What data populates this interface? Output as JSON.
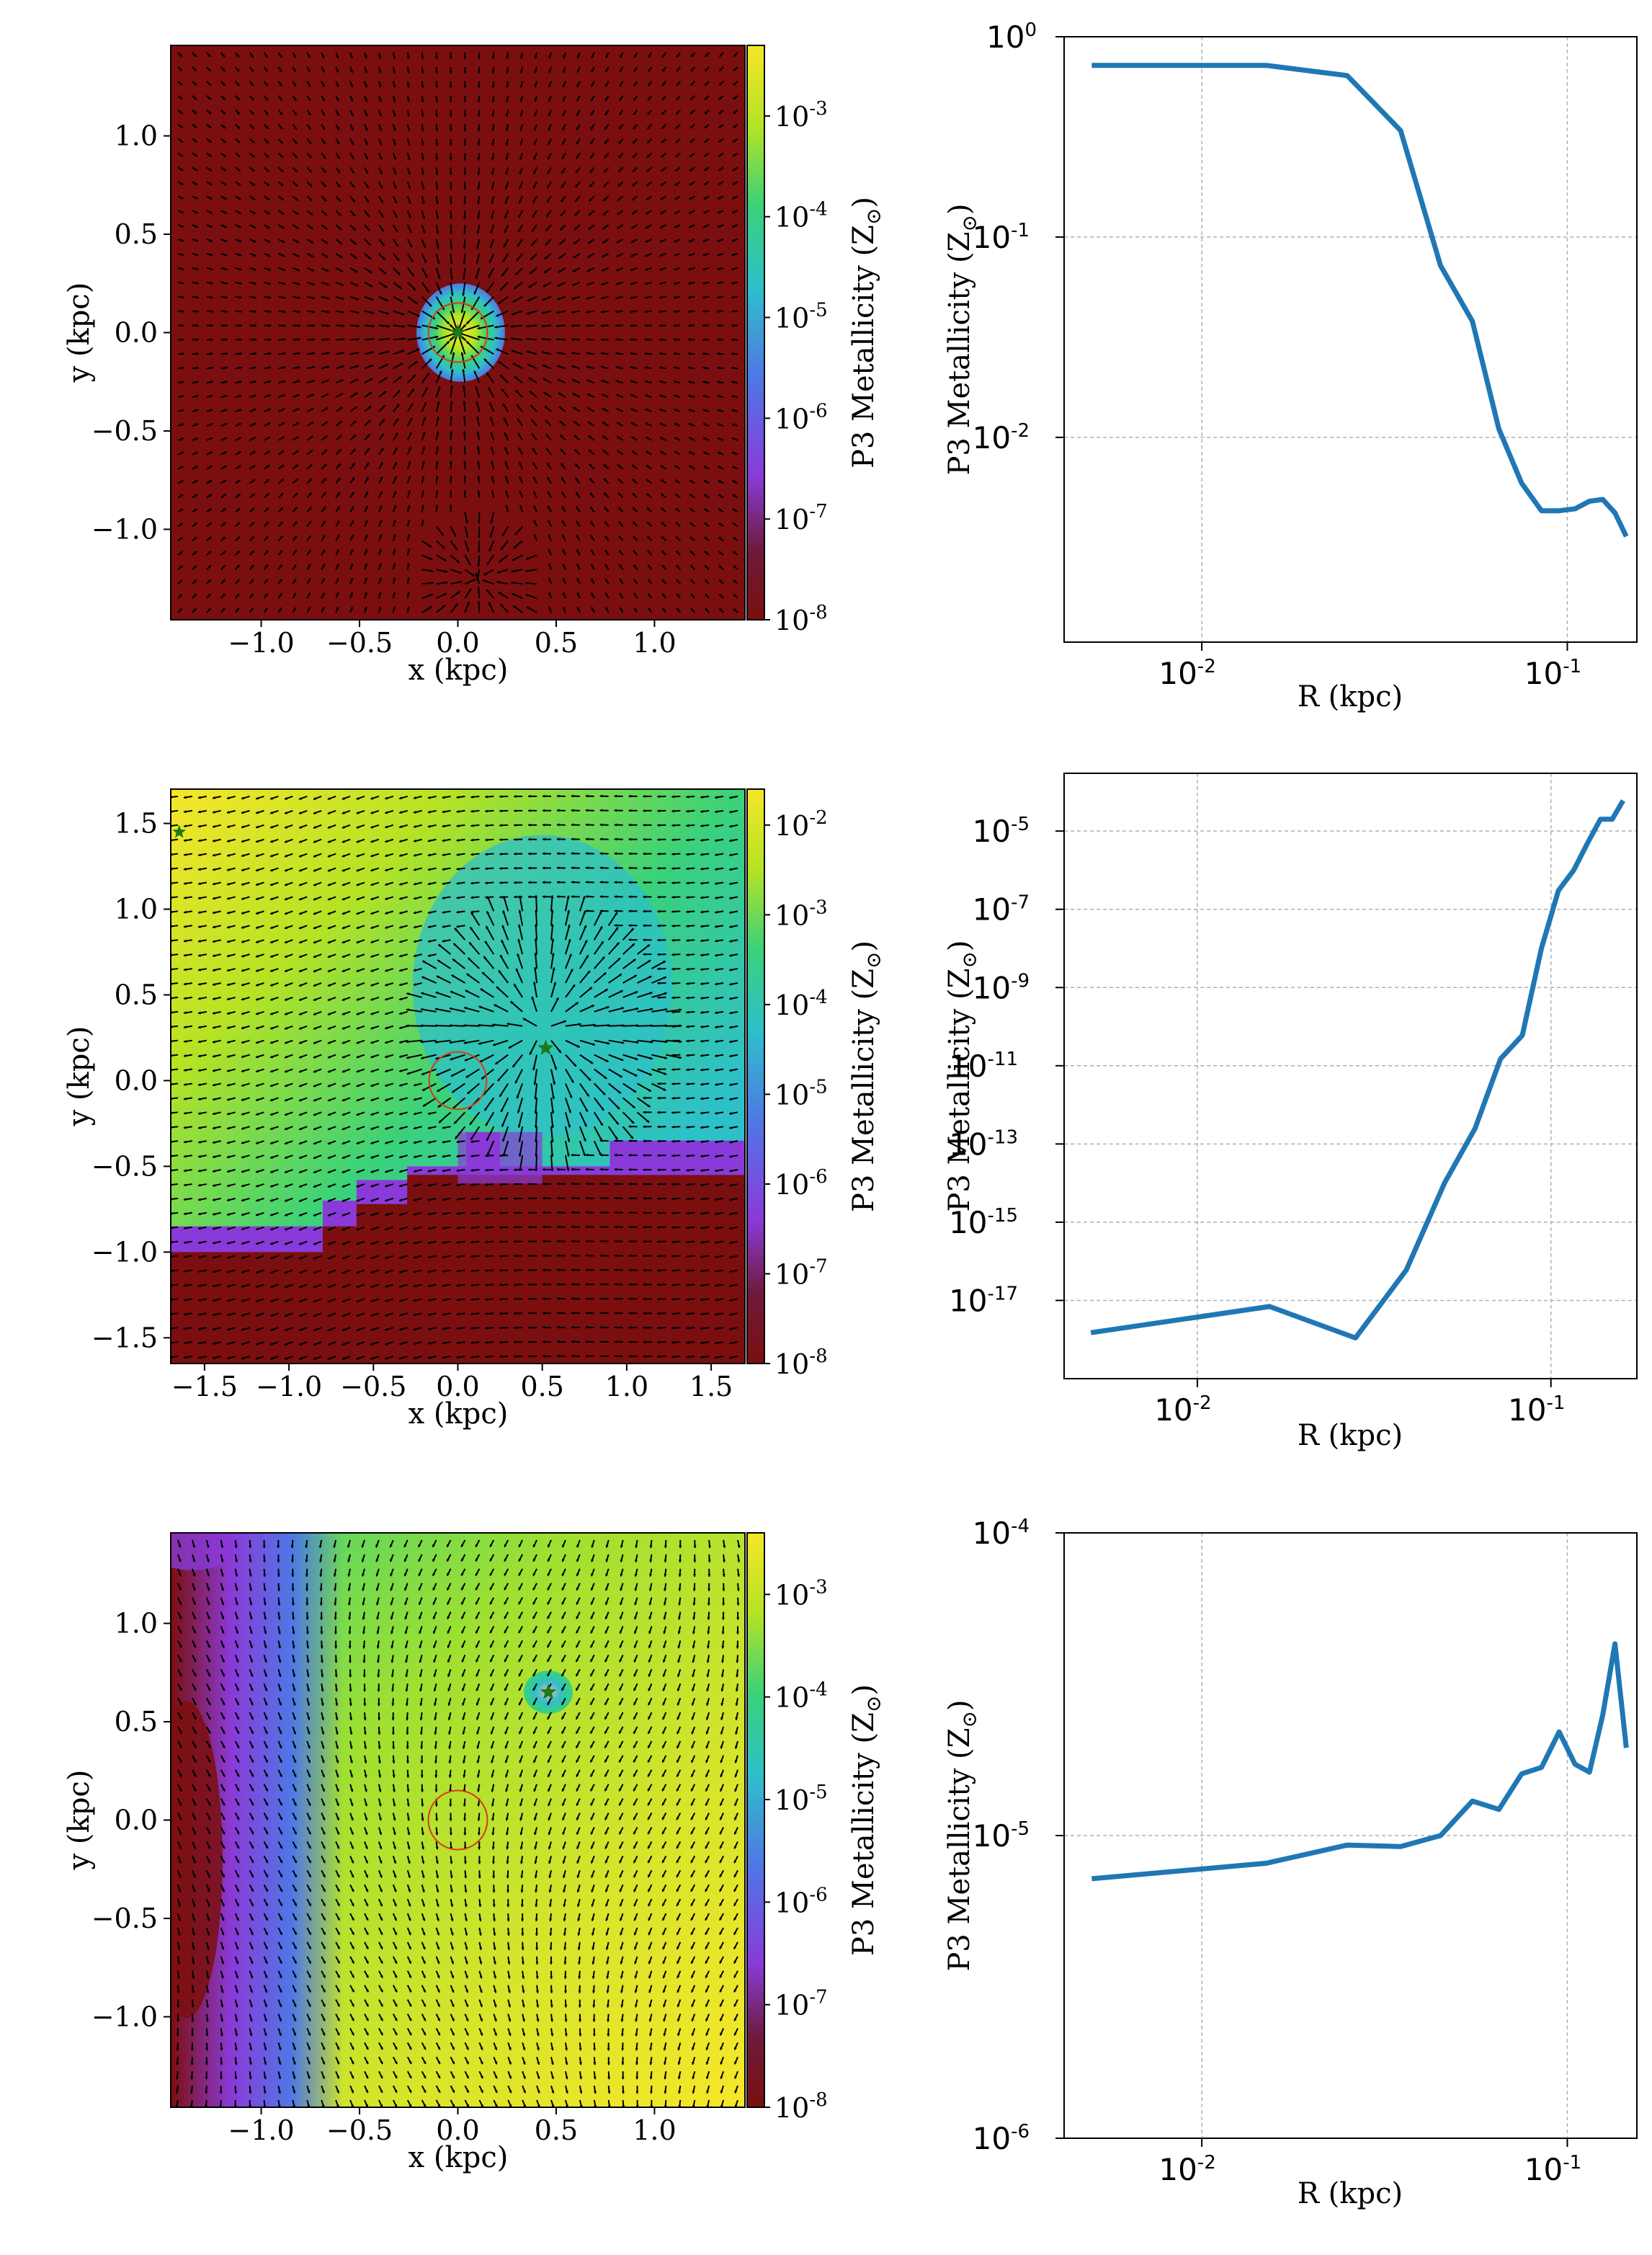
{
  "colors": {
    "colormap": [
      "#7b0f0f",
      "#8a3ad8",
      "#4f77e6",
      "#2ec0c9",
      "#3ad17a",
      "#b5e324",
      "#f7e629"
    ],
    "profile_line": "#1f77b4",
    "grid": "#b0b0b0",
    "arrow": "#000000",
    "star": "#1a7a1a",
    "circle": "#d63a1a"
  },
  "common": {
    "map_xlabel": "x  (kpc)",
    "map_ylabel": "y  (kpc)",
    "colorbar_label": "P3 Metallicity  (Z",
    "colorbar_label_sub": "⊙",
    "colorbar_label_close": ")",
    "profile_xlabel": "R  (kpc)",
    "profile_ylabel": "P3 Metallicity  (Z",
    "profile_ylabel_sub": "⊙",
    "profile_ylabel_close": ")"
  },
  "chart_data": [
    {
      "type": "heatmap",
      "panel": "top-left",
      "xlim": [
        -1.46,
        1.46
      ],
      "ylim": [
        -1.46,
        1.46
      ],
      "xticks": [
        "−1.0",
        "−0.5",
        "0.0",
        "0.5",
        "1.0"
      ],
      "xtick_values": [
        -1.0,
        -0.5,
        0.0,
        0.5,
        1.0
      ],
      "yticks": [
        "1.0",
        "0.5",
        "0.0",
        "−0.5",
        "−1.0"
      ],
      "ytick_values": [
        1.0,
        0.5,
        0.0,
        -0.5,
        -1.0
      ],
      "colorbar": {
        "log_min": -8,
        "log_max": -2.3,
        "tick_exponents": [
          -3,
          -4,
          -5,
          -6,
          -7,
          -8
        ]
      },
      "background_log_metallicity": -8,
      "enriched_regions": [
        {
          "x": 0.0,
          "y": 0.0,
          "radius": 0.25,
          "peak_log": -2.6
        }
      ],
      "star": {
        "x": 0.0,
        "y": 0.0
      },
      "circle": {
        "x": 0.0,
        "y": 0.0,
        "r": 0.15
      },
      "outflow": {
        "x": 0.0,
        "y": 0.0
      },
      "inflow": {
        "x": 0.1,
        "y": -1.25
      }
    },
    {
      "type": "line",
      "panel": "top-right",
      "xscale": "log",
      "yscale": "log",
      "xlim": [
        0.0042,
        0.155
      ],
      "ylim": [
        0.00095,
        1.0
      ],
      "grid": true,
      "xticks": [
        {
          "label": "10",
          "exp": "-2",
          "value": 0.01
        },
        {
          "label": "10",
          "exp": "-1",
          "value": 0.1
        }
      ],
      "yticks": [
        {
          "label": "10",
          "exp": "0",
          "value": 1
        },
        {
          "label": "10",
          "exp": "-1",
          "value": 0.1
        },
        {
          "label": "10",
          "exp": "-2",
          "value": 0.01
        }
      ],
      "x": [
        0.005,
        0.015,
        0.025,
        0.035,
        0.045,
        0.055,
        0.065,
        0.075,
        0.085,
        0.095,
        0.105,
        0.115,
        0.125,
        0.135,
        0.145
      ],
      "y": [
        0.72,
        0.72,
        0.64,
        0.34,
        0.072,
        0.038,
        0.011,
        0.0059,
        0.0043,
        0.0043,
        0.0044,
        0.0048,
        0.0049,
        0.0042,
        0.0032
      ]
    },
    {
      "type": "heatmap",
      "panel": "middle-left",
      "xlim": [
        -1.7,
        1.7
      ],
      "ylim": [
        -1.65,
        1.7
      ],
      "xticks": [
        "−1.5",
        "−1.0",
        "−0.5",
        "0.0",
        "0.5",
        "1.0",
        "1.5"
      ],
      "xtick_values": [
        -1.5,
        -1.0,
        -0.5,
        0.0,
        0.5,
        1.0,
        1.5
      ],
      "yticks": [
        "1.5",
        "1.0",
        "0.5",
        "0.0",
        "−0.5",
        "−1.0",
        "−1.5"
      ],
      "ytick_values": [
        1.5,
        1.0,
        0.5,
        0.0,
        -0.5,
        -1.0,
        -1.5
      ],
      "colorbar": {
        "log_min": -8,
        "log_max": -1.6,
        "tick_exponents": [
          -2,
          -3,
          -4,
          -5,
          -6,
          -7,
          -8
        ]
      },
      "star": {
        "x": 0.52,
        "y": 0.19
      },
      "star2": {
        "x": -1.65,
        "y": 1.45
      },
      "circle": {
        "x": 0.0,
        "y": 0.0,
        "r": 0.17
      },
      "outflow": {
        "x": 0.5,
        "y": 0.3
      }
    },
    {
      "type": "line",
      "panel": "middle-right",
      "xscale": "log",
      "yscale": "log",
      "xlim": [
        0.0042,
        0.175
      ],
      "ylim": [
        1e-19,
        0.0003
      ],
      "grid": true,
      "xticks": [
        {
          "label": "10",
          "exp": "-2",
          "value": 0.01
        },
        {
          "label": "10",
          "exp": "-1",
          "value": 0.1
        }
      ],
      "yticks": [
        {
          "label": "10",
          "exp": "-5",
          "value": 1e-05
        },
        {
          "label": "10",
          "exp": "-7",
          "value": 1e-07
        },
        {
          "label": "10",
          "exp": "-9",
          "value": 1e-09
        },
        {
          "label": "10",
          "exp": "-11",
          "value": 1e-11
        },
        {
          "label": "10",
          "exp": "-13",
          "value": 1e-13
        },
        {
          "label": "10",
          "exp": "-15",
          "value": 1e-15
        },
        {
          "label": "10",
          "exp": "-17",
          "value": 1e-17
        }
      ],
      "x": [
        0.005,
        0.016,
        0.028,
        0.039,
        0.05,
        0.061,
        0.072,
        0.083,
        0.094,
        0.105,
        0.116,
        0.127,
        0.138,
        0.149,
        0.16
      ],
      "y": [
        1.5e-18,
        7e-18,
        1.1e-18,
        6e-17,
        1e-14,
        2.5e-13,
        1.5e-11,
        6e-11,
        1e-08,
        3e-07,
        1e-06,
        5e-06,
        2e-05,
        2e-05,
        6e-05
      ]
    },
    {
      "type": "heatmap",
      "panel": "bottom-left",
      "xlim": [
        -1.46,
        1.46
      ],
      "ylim": [
        -1.46,
        1.46
      ],
      "xticks": [
        "−1.0",
        "−0.5",
        "0.0",
        "0.5",
        "1.0"
      ],
      "xtick_values": [
        -1.0,
        -0.5,
        0.0,
        0.5,
        1.0
      ],
      "yticks": [
        "1.0",
        "0.5",
        "0.0",
        "−0.5",
        "−1.0"
      ],
      "ytick_values": [
        1.0,
        0.5,
        0.0,
        -0.5,
        -1.0
      ],
      "colorbar": {
        "log_min": -8,
        "log_max": -2.4,
        "tick_exponents": [
          -3,
          -4,
          -5,
          -6,
          -7,
          -8
        ]
      },
      "star": {
        "x": 0.46,
        "y": 0.65
      },
      "circle": {
        "x": 0.0,
        "y": 0.0,
        "r": 0.15
      }
    },
    {
      "type": "line",
      "panel": "bottom-right",
      "xscale": "log",
      "yscale": "log",
      "xlim": [
        0.0042,
        0.155
      ],
      "ylim": [
        1e-06,
        0.0001
      ],
      "grid": true,
      "xticks": [
        {
          "label": "10",
          "exp": "-2",
          "value": 0.01
        },
        {
          "label": "10",
          "exp": "-1",
          "value": 0.1
        }
      ],
      "yticks": [
        {
          "label": "10",
          "exp": "-4",
          "value": 0.0001
        },
        {
          "label": "10",
          "exp": "-5",
          "value": 1e-05
        },
        {
          "label": "10",
          "exp": "-6",
          "value": 1e-06
        }
      ],
      "x": [
        0.005,
        0.015,
        0.025,
        0.035,
        0.045,
        0.055,
        0.065,
        0.075,
        0.085,
        0.095,
        0.105,
        0.115,
        0.125,
        0.135,
        0.145
      ],
      "y": [
        7.2e-06,
        8.1e-06,
        9.3e-06,
        9.2e-06,
        1e-05,
        1.3e-05,
        1.22e-05,
        1.6e-05,
        1.68e-05,
        2.2e-05,
        1.72e-05,
        1.62e-05,
        2.5e-05,
        4.3e-05,
        1.95e-05
      ]
    }
  ]
}
